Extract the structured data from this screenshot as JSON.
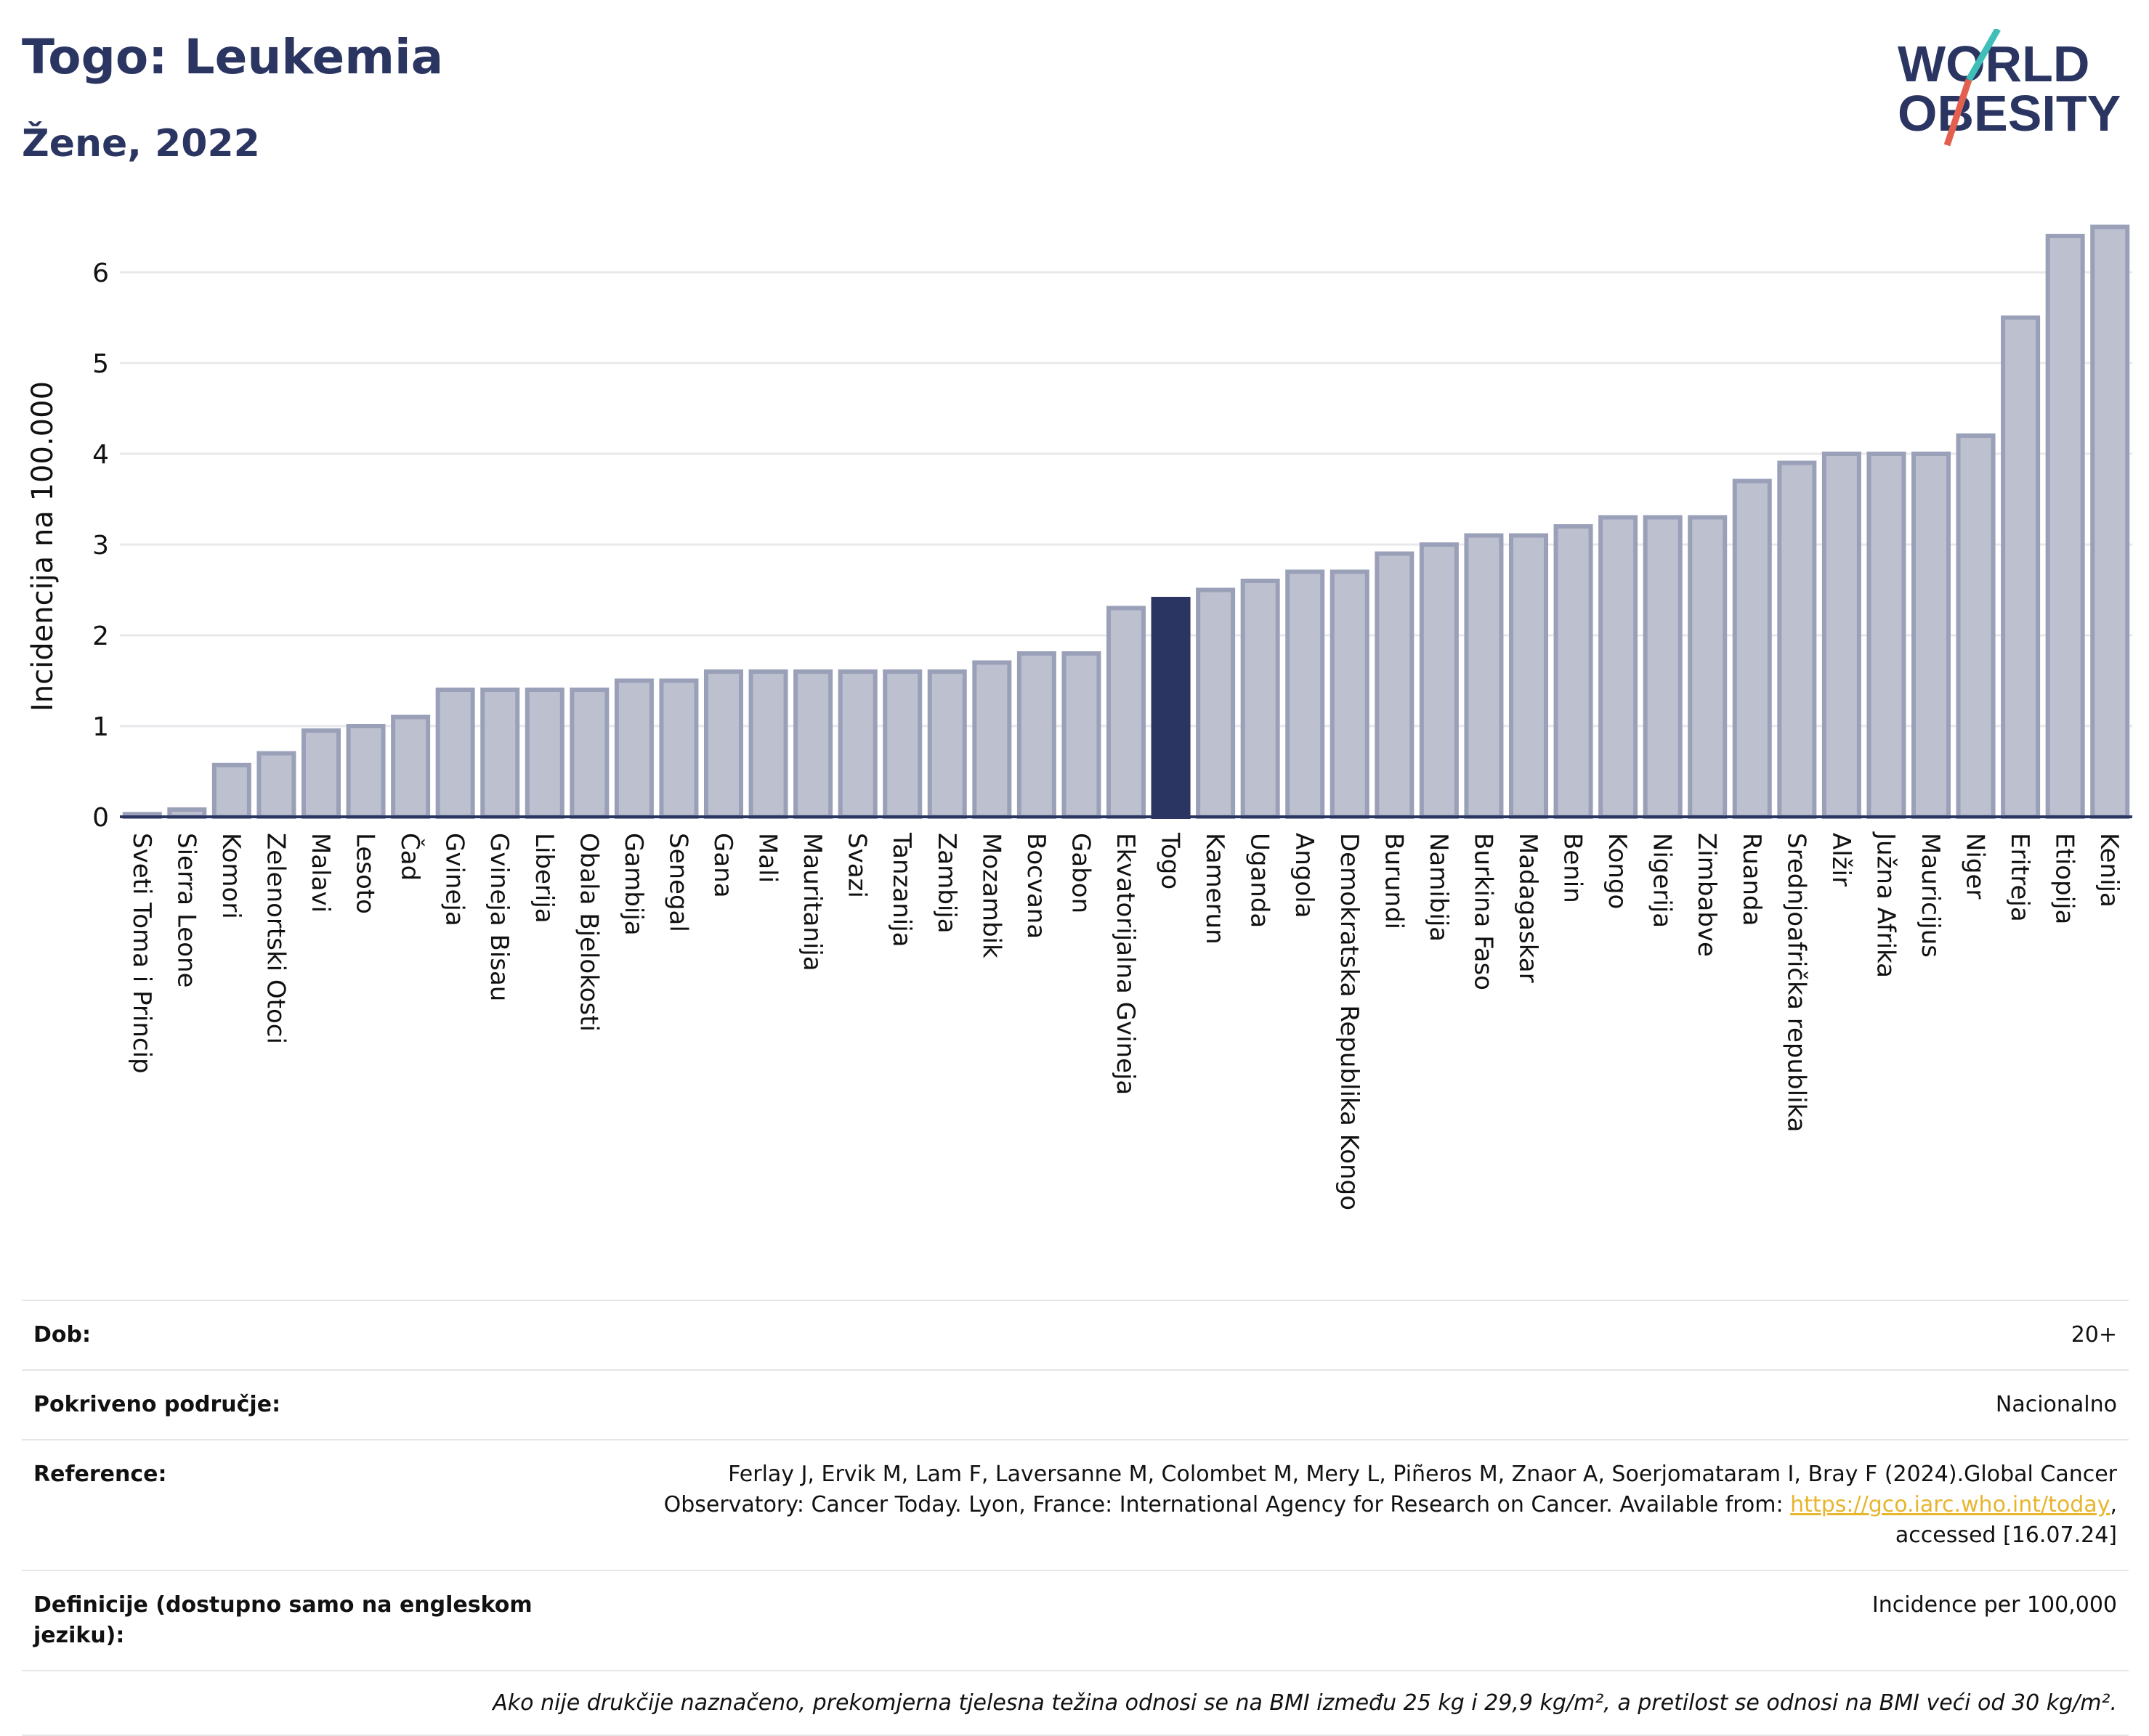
{
  "header": {
    "title": "Togo: Leukemia",
    "subtitle": "Žene, 2022"
  },
  "logo": {
    "line1": "WORLD",
    "line2": "OBESITY"
  },
  "colors": {
    "bar": "#bcc0cf",
    "bar_border": "#9aa0b8",
    "highlight": "#2b3561",
    "text": "#2b3561",
    "link": "#e7b52e"
  },
  "chart_data": {
    "type": "bar",
    "ylabel": "Incidencija na 100.000",
    "ylim": [
      0,
      6.6
    ],
    "yticks": [
      0,
      1,
      2,
      3,
      4,
      5,
      6
    ],
    "highlight": "Togo",
    "grid": true,
    "categories": [
      "Sveti Toma i Princip",
      "Sierra Leone",
      "Komori",
      "Zelenortski Otoci",
      "Malavi",
      "Lesoto",
      "Čad",
      "Gvineja",
      "Gvineja Bisau",
      "Liberija",
      "Obala Bjelokosti",
      "Gambija",
      "Senegal",
      "Gana",
      "Mali",
      "Mauritanija",
      "Svazi",
      "Tanzanija",
      "Zambija",
      "Mozambik",
      "Bocvana",
      "Gabon",
      "Ekvatorijalna Gvineja",
      "Togo",
      "Kamerun",
      "Uganda",
      "Angola",
      "Demokratska Republika Kongo",
      "Burundi",
      "Namibija",
      "Burkina Faso",
      "Madagaskar",
      "Benin",
      "Kongo",
      "Nigerija",
      "Zimbabve",
      "Ruanda",
      "Srednjoafrička republika",
      "Alžir",
      "Južna Afrika",
      "Mauricijus",
      "Niger",
      "Eritreja",
      "Etiopija",
      "Kenija"
    ],
    "values": [
      0.03,
      0.08,
      0.57,
      0.7,
      0.95,
      1.0,
      1.1,
      1.4,
      1.4,
      1.4,
      1.4,
      1.5,
      1.5,
      1.6,
      1.6,
      1.6,
      1.6,
      1.6,
      1.6,
      1.7,
      1.8,
      1.8,
      2.3,
      2.4,
      2.5,
      2.6,
      2.7,
      2.7,
      2.9,
      3.0,
      3.1,
      3.1,
      3.2,
      3.3,
      3.3,
      3.3,
      3.7,
      3.9,
      4.0,
      4.0,
      4.0,
      4.2,
      5.5,
      6.4,
      6.5
    ]
  },
  "info": {
    "age": {
      "label": "Dob:",
      "value": "20+"
    },
    "coverage": {
      "label": "Pokriveno područje:",
      "value": "Nacionalno"
    },
    "reference": {
      "label": "Reference:",
      "text1": "Ferlay J, Ervik M, Lam F, Laversanne M, Colombet M, Mery L, Piñeros M, Znaor A, Soerjomataram I, Bray F (2024).Global Cancer",
      "text2": "Observatory: Cancer Today. Lyon, France: International Agency for Research on Cancer. Available from: ",
      "link": "https://gco.iarc.who.int/today",
      "text3": ",",
      "text4": "accessed [16.07.24]"
    },
    "definitions": {
      "label": "Definicije (dostupno samo na engleskom jeziku):",
      "value": "Incidence per 100,000"
    },
    "note": "Ako nije drukčije naznačeno, prekomjerna tjelesna težina odnosi se na BMI između 25 kg i 29,9 kg/m², a pretilost se odnosi na BMI veći od 30 kg/m²."
  }
}
